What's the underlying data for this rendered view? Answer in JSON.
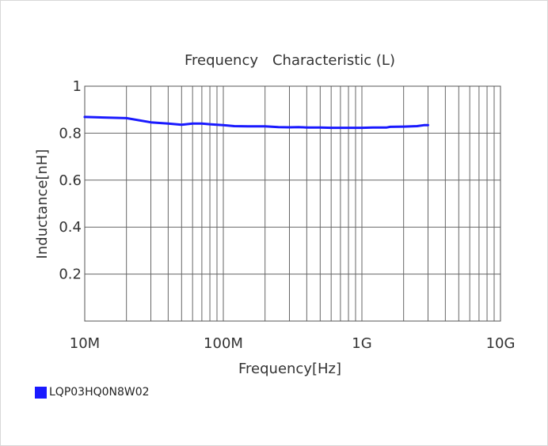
{
  "chart_data": {
    "type": "line",
    "title": "Frequency　Characteristic (L)",
    "xlabel": "Frequency[Hz]",
    "ylabel": "Inductance[nH]",
    "x_scale": "log",
    "xlim": [
      10000000,
      10000000000
    ],
    "ylim": [
      0,
      1
    ],
    "x_ticks": [
      10000000,
      100000000,
      1000000000,
      10000000000
    ],
    "x_tick_labels": [
      "10M",
      "100M",
      "1G",
      "10G"
    ],
    "y_ticks": [
      0.2,
      0.4,
      0.6,
      0.8,
      1
    ],
    "y_tick_labels": [
      "0.2",
      "0.4",
      "0.6",
      "0.8",
      "1"
    ],
    "grid": true,
    "legend_position": "bottom-left",
    "series": [
      {
        "name": "LQP03HQ0N8W02",
        "color": "#1a1aff",
        "x": [
          10000000,
          20000000,
          30000000,
          40000000,
          50000000,
          60000000,
          70000000,
          80000000,
          90000000,
          100000000,
          120000000,
          150000000,
          200000000,
          250000000,
          300000000,
          350000000,
          400000000,
          500000000,
          600000000,
          700000000,
          800000000,
          1000000000,
          1200000000,
          1500000000,
          1600000000,
          2000000000,
          2500000000,
          2800000000,
          3000000000
        ],
        "y": [
          0.869,
          0.864,
          0.846,
          0.841,
          0.836,
          0.841,
          0.841,
          0.838,
          0.836,
          0.834,
          0.83,
          0.829,
          0.829,
          0.826,
          0.825,
          0.826,
          0.824,
          0.824,
          0.823,
          0.823,
          0.823,
          0.823,
          0.824,
          0.824,
          0.827,
          0.828,
          0.83,
          0.834,
          0.834
        ]
      }
    ]
  }
}
